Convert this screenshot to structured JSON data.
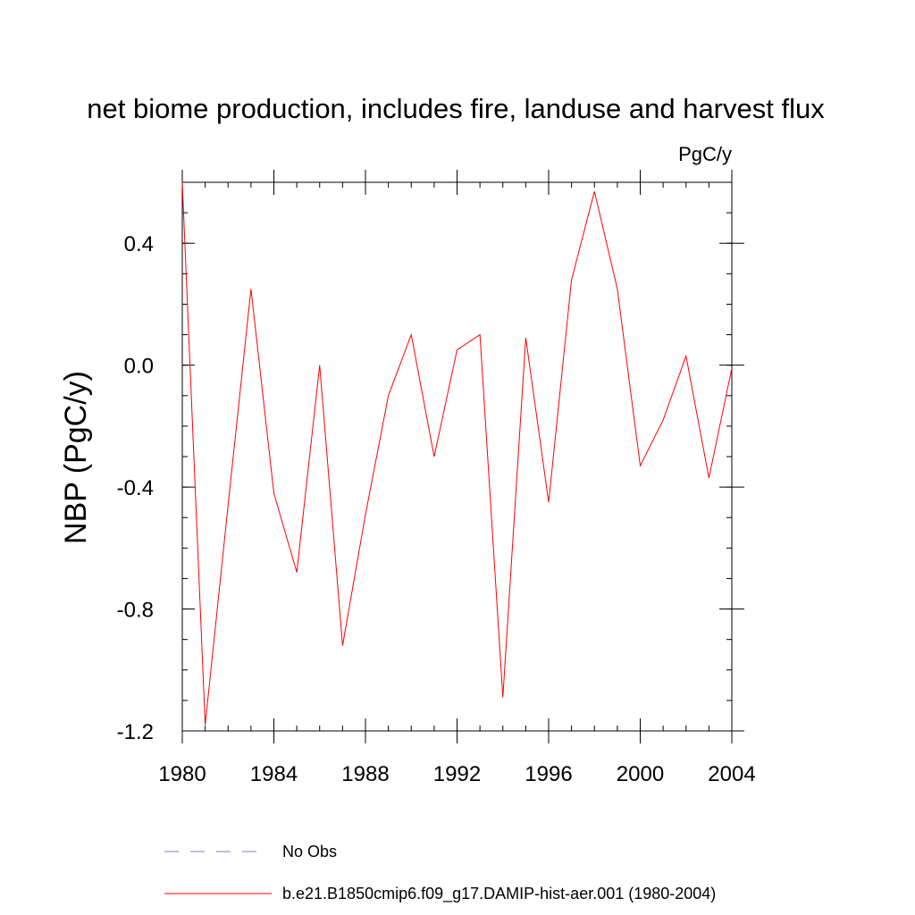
{
  "chart_data": {
    "type": "line",
    "title": "net biome production, includes fire, landuse and harvest flux",
    "units": "PgC/y",
    "xlabel": "",
    "ylabel": "NBP  (PgC/y)",
    "xlim": [
      1980,
      2004
    ],
    "ylim": [
      -1.2,
      0.6
    ],
    "xticks": [
      1980,
      1984,
      1988,
      1992,
      1996,
      2000,
      2004
    ],
    "xtick_labels": [
      "1980",
      "1984",
      "1988",
      "1992",
      "1996",
      "2000",
      "2004"
    ],
    "yticks": [
      -1.2,
      -0.8,
      -0.4,
      0.0,
      0.4
    ],
    "ytick_labels": [
      "-1.2",
      "-0.8",
      "-0.4",
      "0.0",
      "0.4"
    ],
    "grid": false,
    "legend_position": "bottom",
    "series": [
      {
        "name": "b.e21.B1850cmip6.f09_g17.DAMIP-hist-aer.001 (1980-2004)",
        "color": "#ff0000",
        "style": "solid",
        "x": [
          1980,
          1981,
          1982,
          1983,
          1984,
          1985,
          1986,
          1987,
          1988,
          1989,
          1990,
          1991,
          1992,
          1993,
          1994,
          1995,
          1996,
          1997,
          1998,
          1999,
          2000,
          2001,
          2002,
          2003,
          2004
        ],
        "values": [
          0.6,
          -1.18,
          -0.46,
          0.25,
          -0.42,
          -0.68,
          0.0,
          -0.92,
          -0.49,
          -0.1,
          0.1,
          -0.3,
          0.05,
          0.1,
          -1.09,
          0.09,
          -0.45,
          0.28,
          0.57,
          0.25,
          -0.33,
          -0.18,
          0.03,
          -0.37,
          -0.01
        ]
      }
    ],
    "legend": [
      {
        "label": "No Obs",
        "color": "#8a7fc8",
        "style": "dashed"
      },
      {
        "label": "b.e21.B1850cmip6.f09_g17.DAMIP-hist-aer.001 (1980-2004)",
        "color": "#ff0000",
        "style": "solid"
      }
    ]
  }
}
